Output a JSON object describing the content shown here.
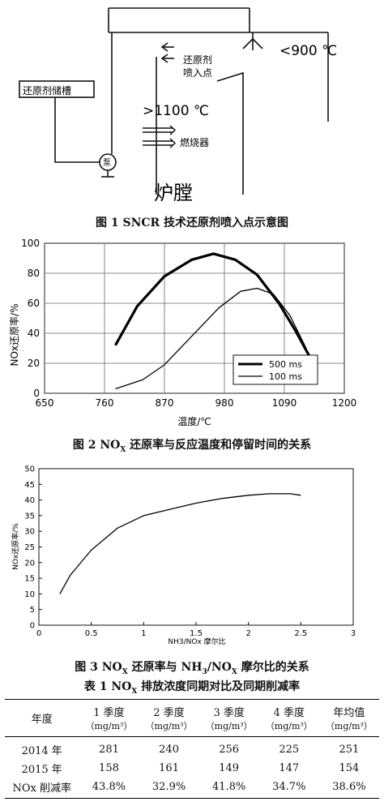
{
  "figure1": {
    "tank_label": "还原剂储槽",
    "injection_label_1": "还原剂",
    "injection_label_2": "喷入点",
    "temp_low": "<900 ℃",
    "temp_high": ">1100 ℃",
    "burner_label": "燃烧器",
    "pump_label": "泵",
    "furnace_label": "炉膛",
    "caption": "图 1   SNCR 技术还原剂喷入点示意图"
  },
  "figure2": {
    "caption_pre": "图 2   NO",
    "caption_sub": "X",
    "caption_post": " 还原率与反应温度和停留时间的关系",
    "ylabel": "NOx还原率/%",
    "xlabel": "温度/℃",
    "chart_data": {
      "type": "line",
      "xlim": [
        650,
        1200
      ],
      "ylim": [
        0,
        100
      ],
      "xticks": [
        "650",
        "760",
        "870",
        "980",
        "1090",
        "1200"
      ],
      "yticks": [
        "0",
        "20",
        "40",
        "60",
        "80",
        "100"
      ],
      "grid": true,
      "legend_position": "bottom-right",
      "series": [
        {
          "name": "500 ms",
          "style": "thick",
          "x": [
            780,
            820,
            870,
            920,
            960,
            1000,
            1040,
            1080,
            1110,
            1140
          ],
          "y": [
            32,
            58,
            78,
            89,
            93,
            89,
            79,
            60,
            42,
            22
          ]
        },
        {
          "name": "100 ms",
          "style": "thin",
          "x": [
            780,
            830,
            870,
            920,
            970,
            1010,
            1040,
            1070,
            1100,
            1130
          ],
          "y": [
            3,
            9,
            19,
            38,
            57,
            68,
            70,
            66,
            52,
            30
          ]
        }
      ]
    }
  },
  "figure3": {
    "caption_pre": "图 3   NO",
    "caption_sub1": "X",
    "caption_mid": " 还原率与 NH",
    "caption_sub2": "3",
    "caption_mid2": "/NO",
    "caption_sub3": "X",
    "caption_post": " 摩尔比的关系",
    "ylabel": "NOx还原率/%",
    "xlabel": "NH3/NOx 摩尔比",
    "chart_data": {
      "type": "line",
      "xlim": [
        0,
        3
      ],
      "ylim": [
        0,
        50
      ],
      "xticks": [
        "0",
        "0.5",
        "1",
        "1.5",
        "2",
        "2.5",
        "3"
      ],
      "yticks": [
        "0",
        "5",
        "10",
        "15",
        "20",
        "25",
        "30",
        "35",
        "40",
        "45",
        "50"
      ],
      "grid": false,
      "series": [
        {
          "x": [
            0.2,
            0.3,
            0.5,
            0.75,
            1.0,
            1.25,
            1.5,
            1.75,
            2.0,
            2.2,
            2.4,
            2.5
          ],
          "y": [
            10,
            16,
            24,
            31,
            35,
            37,
            39,
            40.5,
            41.5,
            42,
            42,
            41.5
          ]
        }
      ]
    }
  },
  "table1": {
    "caption_pre": "表 1   NO",
    "caption_sub": "X",
    "caption_post": " 排放浓度同期对比及同期削减率",
    "headers": [
      {
        "line1": "年度",
        "line2": ""
      },
      {
        "line1": "1 季度",
        "line2": "（mg/m³）"
      },
      {
        "line1": "2 季度",
        "line2": "（mg/m³）"
      },
      {
        "line1": "3 季度",
        "line2": "（mg/m³）"
      },
      {
        "line1": "4 季度",
        "line2": "（mg/m³）"
      },
      {
        "line1": "年均值",
        "line2": "（mg/m³）"
      }
    ],
    "rows": [
      [
        "2014 年",
        "281",
        "240",
        "256",
        "225",
        "251"
      ],
      [
        "2015 年",
        "158",
        "161",
        "149",
        "147",
        "154"
      ],
      [
        "NOx 削减率",
        "43.8%",
        "32.9%",
        "41.8%",
        "34.7%",
        "38.6%"
      ]
    ]
  }
}
